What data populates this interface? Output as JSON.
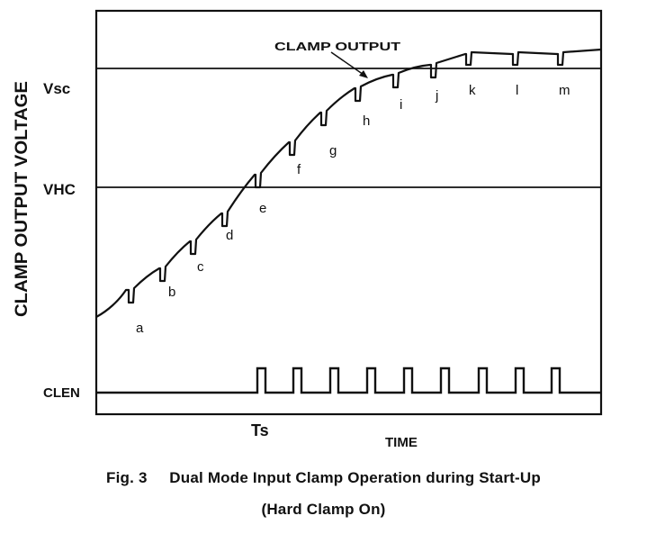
{
  "figure": {
    "y_axis_label": "CLAMP OUTPUT VOLTAGE",
    "level_labels": {
      "vsc": "Vsc",
      "vhc": "VHC",
      "clen": "CLEN"
    },
    "annotation": "CLAMP OUTPUT",
    "time_marker": "Ts",
    "x_axis_label": "TIME",
    "pulse_labels": [
      "a",
      "b",
      "c",
      "d",
      "e",
      "f",
      "g",
      "h",
      "i",
      "j",
      "k",
      "l",
      "m"
    ]
  },
  "caption": {
    "line1": "Fig. 3     Dual Mode Input Clamp Operation during Start-Up",
    "line2": "(Hard Clamp On)"
  },
  "colors": {
    "ink": "#111111",
    "background": "#ffffff"
  }
}
